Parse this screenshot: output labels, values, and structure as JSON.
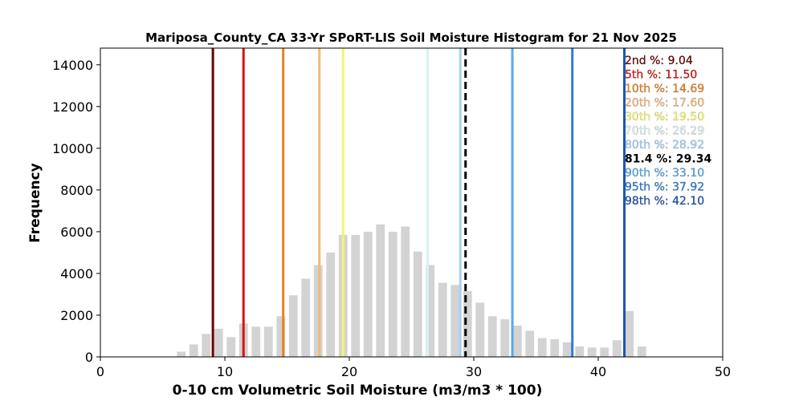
{
  "chart_data": {
    "type": "bar",
    "title": "Mariposa_County_CA 33-Yr SPoRT-LIS Soil Moisture Histogram for 21 Nov 2025",
    "xlabel": "0-10 cm Volumetric Soil Moisture (m3/m3 * 100)",
    "ylabel": "Frequency",
    "xlim": [
      0,
      50
    ],
    "ylim": [
      0,
      14800
    ],
    "xticks": [
      0,
      10,
      20,
      30,
      40,
      50
    ],
    "yticks": [
      0,
      2000,
      4000,
      6000,
      8000,
      10000,
      12000,
      14000
    ],
    "grid": false,
    "bar_color": "#d3d3d3",
    "bars": {
      "x": [
        6.5,
        7.5,
        8.5,
        9.5,
        10.5,
        11.5,
        12.5,
        13.5,
        14.5,
        15.5,
        16.5,
        17.5,
        18.5,
        19.5,
        20.5,
        21.5,
        22.5,
        23.5,
        24.5,
        25.5,
        26.5,
        27.5,
        28.5,
        29.5,
        30.5,
        31.5,
        32.5,
        33.5,
        34.5,
        35.5,
        36.5,
        37.5,
        38.5,
        39.5,
        40.5,
        41.5,
        42.5,
        43.5
      ],
      "values": [
        250,
        600,
        1100,
        1350,
        950,
        1600,
        1450,
        1450,
        1950,
        2950,
        3750,
        4400,
        5000,
        5850,
        5850,
        6000,
        6350,
        6000,
        6250,
        5050,
        4400,
        3550,
        3450,
        3150,
        2600,
        1950,
        1800,
        1500,
        1250,
        900,
        850,
        700,
        500,
        450,
        450,
        800,
        2200,
        500
      ]
    },
    "percentile_lines": [
      {
        "label": "2nd %: 9.04",
        "x": 9.04,
        "color": "#6b0000",
        "style": "solid"
      },
      {
        "label": "5th %: 11.50",
        "x": 11.5,
        "color": "#dd1111",
        "style": "solid"
      },
      {
        "label": "10th %: 14.69",
        "x": 14.69,
        "color": "#e8821e",
        "style": "solid"
      },
      {
        "label": "20th %: 17.60",
        "x": 17.6,
        "color": "#f4b87a",
        "style": "solid"
      },
      {
        "label": "30th %: 19.50",
        "x": 19.5,
        "color": "#f5f56e",
        "style": "solid"
      },
      {
        "label": "70th %: 26.29",
        "x": 26.29,
        "color": "#d9f2f7",
        "style": "solid"
      },
      {
        "label": "80th %: 28.92",
        "x": 28.92,
        "color": "#a8d0f0",
        "style": "solid"
      },
      {
        "label": "81.4 %: 29.34",
        "x": 29.34,
        "color": "#000000",
        "style": "dashed"
      },
      {
        "label": "90th %: 33.10",
        "x": 33.1,
        "color": "#5aaae8",
        "style": "solid"
      },
      {
        "label": "95th %: 37.92",
        "x": 37.92,
        "color": "#2f7ad8",
        "style": "solid"
      },
      {
        "label": "98th %: 42.10",
        "x": 42.1,
        "color": "#1c55b0",
        "style": "solid"
      }
    ]
  }
}
